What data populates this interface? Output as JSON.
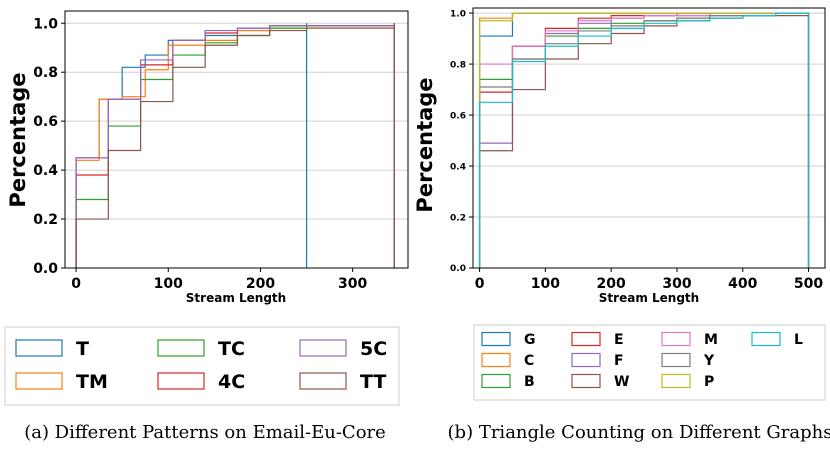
{
  "chart_data": [
    {
      "type": "step",
      "caption": "(a) Different Patterns on Email-Eu-Core",
      "xlabel": "Stream Length",
      "ylabel": "Percentage",
      "xlim": [
        -12,
        360
      ],
      "ylim": [
        0,
        1.05
      ],
      "xticks": [
        "0",
        "100",
        "200",
        "300"
      ],
      "xtick_values": [
        0,
        100,
        200,
        300
      ],
      "yticks": [
        "0.0",
        "0.2",
        "0.4",
        "0.6",
        "0.8",
        "1.0"
      ],
      "ytick_values": [
        0,
        0.2,
        0.4,
        0.6,
        0.8,
        1.0
      ],
      "grid": "horizontal",
      "legend_position": "below",
      "legend_columns": 3,
      "series": [
        {
          "name": "T",
          "color": "#1f77b4",
          "x": [
            0,
            25,
            50,
            75,
            100,
            140,
            175,
            210,
            250
          ],
          "y": [
            0.45,
            0.69,
            0.82,
            0.87,
            0.93,
            0.95,
            0.97,
            0.99,
            1.0
          ]
        },
        {
          "name": "TM",
          "color": "#ff7f0e",
          "x": [
            0,
            25,
            50,
            75,
            100,
            140,
            175,
            210,
            250,
            345
          ],
          "y": [
            0.44,
            0.69,
            0.7,
            0.81,
            0.91,
            0.93,
            0.97,
            0.98,
            0.99,
            1.0
          ]
        },
        {
          "name": "TC",
          "color": "#2ca02c",
          "x": [
            0,
            35,
            70,
            105,
            140,
            175,
            210,
            250,
            345
          ],
          "y": [
            0.28,
            0.58,
            0.77,
            0.87,
            0.92,
            0.95,
            0.98,
            0.99,
            1.0
          ]
        },
        {
          "name": "4C",
          "color": "#d62728",
          "x": [
            0,
            35,
            70,
            105,
            140,
            175,
            210,
            250,
            345
          ],
          "y": [
            0.38,
            0.69,
            0.83,
            0.93,
            0.96,
            0.98,
            0.99,
            0.99,
            1.0
          ]
        },
        {
          "name": "5C",
          "color": "#9467bd",
          "x": [
            0,
            35,
            70,
            105,
            140,
            175,
            210,
            250,
            345
          ],
          "y": [
            0.45,
            0.69,
            0.85,
            0.93,
            0.97,
            0.98,
            0.99,
            0.99,
            1.0
          ]
        },
        {
          "name": "TT",
          "color": "#8c564b",
          "x": [
            0,
            35,
            70,
            105,
            140,
            175,
            210,
            250,
            345
          ],
          "y": [
            0.2,
            0.48,
            0.68,
            0.82,
            0.91,
            0.95,
            0.97,
            0.98,
            1.0
          ]
        }
      ]
    },
    {
      "type": "step",
      "caption": "(b) Triangle Counting on Different Graphs",
      "xlabel": "Stream Length",
      "ylabel": "Percentage",
      "xlim": [
        -10,
        525
      ],
      "ylim": [
        0,
        1.02
      ],
      "xticks": [
        "0",
        "100",
        "200",
        "300",
        "400",
        "500"
      ],
      "xtick_values": [
        0,
        100,
        200,
        300,
        400,
        500
      ],
      "yticks": [
        "0.0",
        "0.2",
        "0.4",
        "0.6",
        "0.8",
        "1.0"
      ],
      "ytick_values": [
        0,
        0.2,
        0.4,
        0.6,
        0.8,
        1.0
      ],
      "grid": "horizontal",
      "legend_position": "below",
      "legend_columns": 4,
      "series": [
        {
          "name": "G",
          "color": "#1f77b4",
          "x": [
            0,
            50,
            100,
            150,
            200,
            250,
            300,
            350,
            400,
            450,
            500
          ],
          "y": [
            0.91,
            1.0,
            1.0,
            1.0,
            1.0,
            1.0,
            1.0,
            1.0,
            1.0,
            1.0,
            1.0
          ]
        },
        {
          "name": "C",
          "color": "#ff7f0e",
          "x": [
            0,
            50,
            100,
            150,
            200,
            250,
            300,
            350,
            400,
            450,
            500
          ],
          "y": [
            0.98,
            1.0,
            1.0,
            1.0,
            1.0,
            1.0,
            1.0,
            1.0,
            1.0,
            1.0,
            1.0
          ]
        },
        {
          "name": "B",
          "color": "#2ca02c",
          "x": [
            0,
            50,
            100,
            150,
            200,
            250,
            300,
            350,
            400,
            450,
            500
          ],
          "y": [
            0.74,
            0.87,
            0.91,
            0.94,
            0.96,
            0.97,
            0.98,
            0.99,
            0.99,
            1.0,
            1.0
          ]
        },
        {
          "name": "E",
          "color": "#d62728",
          "x": [
            0,
            50,
            100,
            150,
            200,
            250,
            300,
            350,
            400,
            450,
            500
          ],
          "y": [
            0.69,
            0.87,
            0.94,
            0.98,
            0.99,
            0.99,
            1.0,
            1.0,
            1.0,
            1.0,
            1.0
          ]
        },
        {
          "name": "F",
          "color": "#9467bd",
          "x": [
            0,
            50,
            100,
            150,
            200,
            250,
            300,
            350,
            400,
            450,
            500
          ],
          "y": [
            0.49,
            0.82,
            0.92,
            0.96,
            0.98,
            0.99,
            0.99,
            1.0,
            1.0,
            1.0,
            1.0
          ]
        },
        {
          "name": "W",
          "color": "#8c564b",
          "x": [
            0,
            50,
            100,
            150,
            200,
            250,
            300,
            350,
            400,
            450,
            500
          ],
          "y": [
            0.46,
            0.7,
            0.82,
            0.88,
            0.92,
            0.95,
            0.97,
            0.98,
            0.99,
            0.99,
            1.0
          ]
        },
        {
          "name": "M",
          "color": "#e377c2",
          "x": [
            0,
            50,
            100,
            150,
            200,
            250,
            300,
            350,
            400,
            450,
            500
          ],
          "y": [
            0.8,
            0.87,
            0.93,
            0.97,
            0.98,
            0.99,
            0.99,
            1.0,
            1.0,
            1.0,
            1.0
          ]
        },
        {
          "name": "Y",
          "color": "#7f7f7f",
          "x": [
            0,
            50,
            100,
            150,
            200,
            250,
            300,
            350,
            400,
            450,
            500
          ],
          "y": [
            0.71,
            0.82,
            0.88,
            0.93,
            0.95,
            0.97,
            0.98,
            0.99,
            0.99,
            1.0,
            1.0
          ]
        },
        {
          "name": "P",
          "color": "#bcbd22",
          "x": [
            0,
            50,
            100,
            150,
            200,
            250,
            300,
            350,
            400,
            450,
            500
          ],
          "y": [
            0.97,
            1.0,
            1.0,
            1.0,
            1.0,
            1.0,
            1.0,
            1.0,
            1.0,
            1.0,
            1.0
          ]
        },
        {
          "name": "L",
          "color": "#17becf",
          "x": [
            0,
            50,
            100,
            150,
            200,
            250,
            300,
            350,
            400,
            450,
            500
          ],
          "y": [
            0.65,
            0.81,
            0.87,
            0.91,
            0.94,
            0.96,
            0.97,
            0.98,
            0.99,
            1.0,
            1.0
          ]
        }
      ]
    }
  ]
}
